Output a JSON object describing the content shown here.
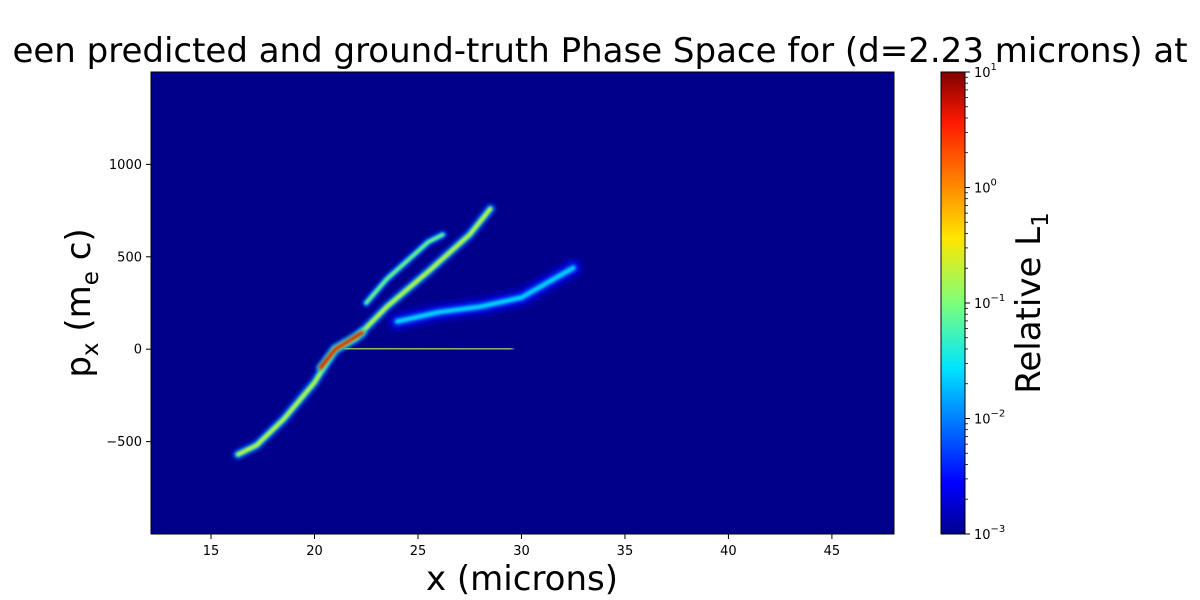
{
  "chart_data": {
    "type": "heatmap",
    "title": "een predicted and ground-truth Phase Space for (d=2.23 microns) at",
    "xlabel": "x (microns)",
    "ylabel": {
      "base": "p",
      "sub": "x",
      "rest": " (m",
      "sub2": "e",
      "rest2": " c)"
    },
    "xlim": [
      12.1,
      48.0
    ],
    "ylim": [
      -1000,
      1500
    ],
    "x_ticks": [
      15,
      20,
      25,
      30,
      35,
      40,
      45
    ],
    "y_ticks": [
      -500,
      0,
      500,
      1000
    ],
    "grid": false,
    "colormap": "jet",
    "background_color": "#00008b",
    "colorbar": {
      "label": "Relative L",
      "label_sub": "1",
      "scale": "log",
      "range": [
        0.001,
        10
      ],
      "ticks": [
        {
          "value": 0.001,
          "base": "10",
          "exp": "−3"
        },
        {
          "value": 0.01,
          "base": "10",
          "exp": "−2"
        },
        {
          "value": 0.1,
          "base": "10",
          "exp": "−1"
        },
        {
          "value": 1,
          "base": "10",
          "exp": "0"
        },
        {
          "value": 10,
          "base": "10",
          "exp": "1"
        }
      ]
    },
    "features": [
      {
        "name": "main-diagonal-band",
        "points": [
          [
            16.3,
            -570
          ],
          [
            17.2,
            -520
          ],
          [
            18.5,
            -380
          ],
          [
            20.0,
            -180
          ],
          [
            21.0,
            0
          ],
          [
            22.0,
            60
          ],
          [
            23.5,
            230
          ],
          [
            25.5,
            420
          ],
          [
            27.5,
            620
          ],
          [
            28.5,
            760
          ]
        ],
        "level": 0.05
      },
      {
        "name": "upper-branch",
        "points": [
          [
            22.5,
            250
          ],
          [
            23.5,
            380
          ],
          [
            24.5,
            480
          ],
          [
            25.5,
            580
          ],
          [
            26.2,
            620
          ]
        ],
        "level": 0.03
      },
      {
        "name": "horizontal-tail",
        "points": [
          [
            21.5,
            5
          ],
          [
            23.0,
            5
          ],
          [
            25.0,
            2
          ],
          [
            27.0,
            0
          ],
          [
            29.5,
            0
          ]
        ],
        "level": 0.1
      },
      {
        "name": "diffuse-wing",
        "points": [
          [
            24.0,
            150
          ],
          [
            26.0,
            200
          ],
          [
            28.0,
            230
          ],
          [
            30.0,
            280
          ],
          [
            32.5,
            440
          ]
        ],
        "level": 0.004
      },
      {
        "name": "hot-core",
        "points": [
          [
            20.3,
            -100
          ],
          [
            21.0,
            0
          ],
          [
            21.6,
            40
          ],
          [
            22.3,
            90
          ]
        ],
        "level": 1.0
      }
    ]
  }
}
